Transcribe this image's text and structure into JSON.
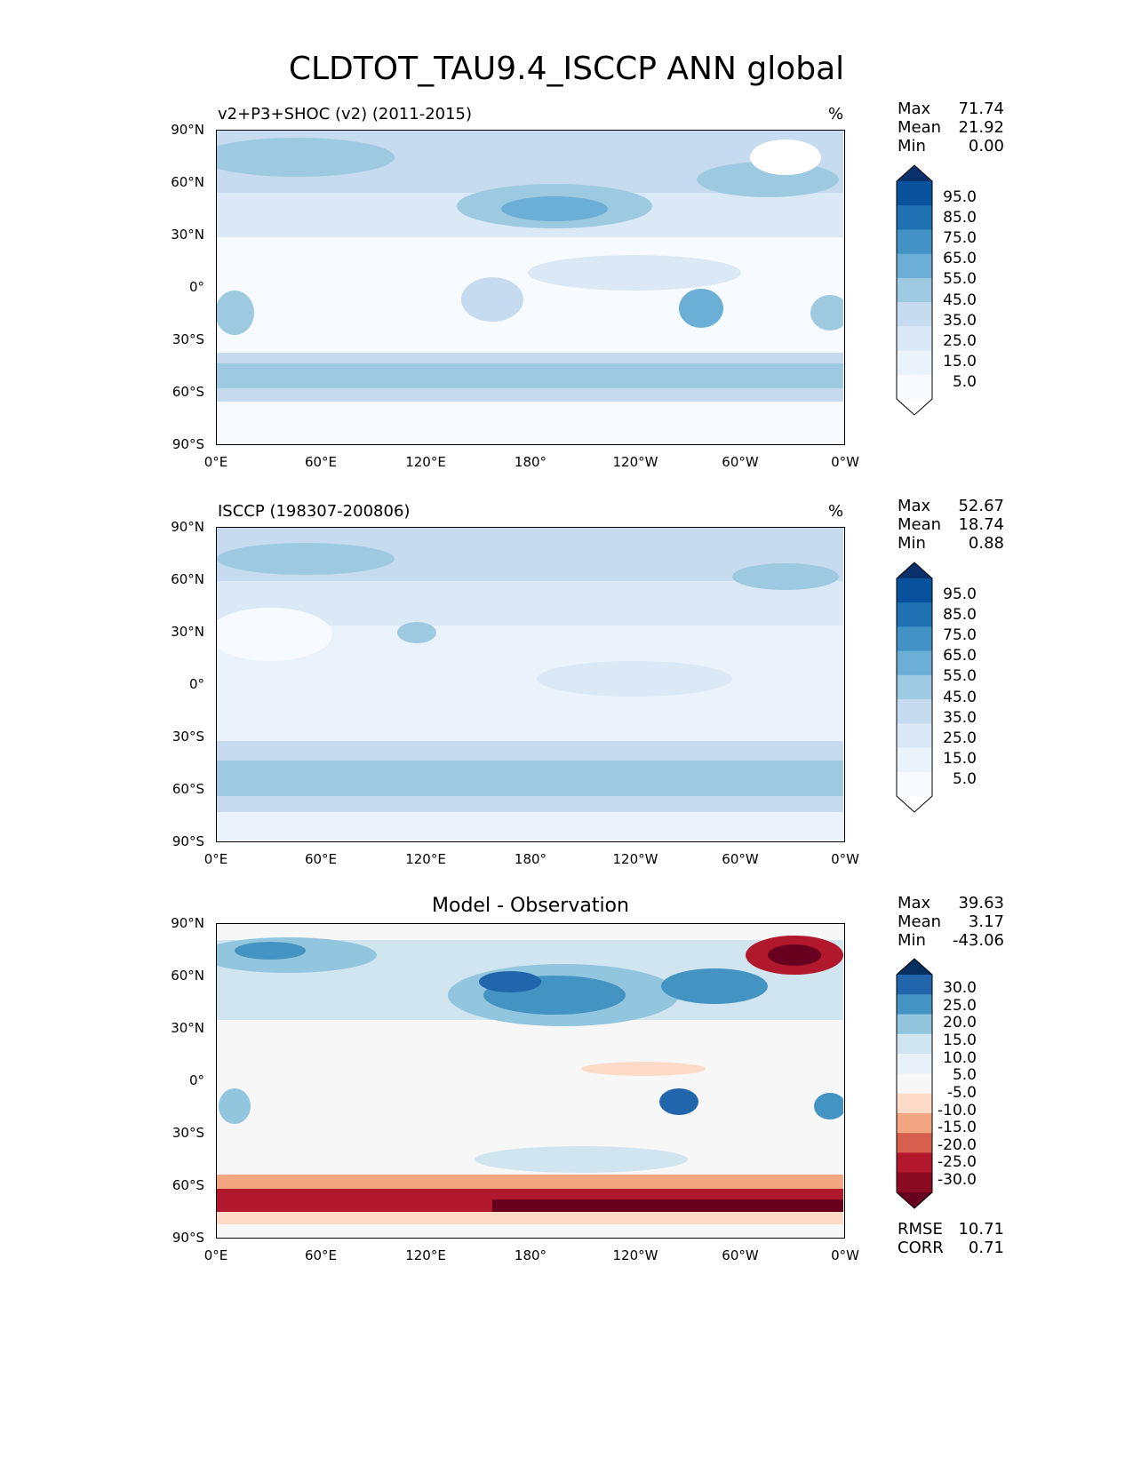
{
  "figure": {
    "title": "CLDTOT_TAU9.4_ISCCP ANN global"
  },
  "axes": {
    "lat_ticks": [
      "90°N",
      "60°N",
      "30°N",
      "0°",
      "30°S",
      "60°S",
      "90°S"
    ],
    "lon_ticks": [
      "0°E",
      "60°E",
      "120°E",
      "180°",
      "120°W",
      "60°W",
      "0°W"
    ]
  },
  "chart_data": [
    {
      "type": "heatmap",
      "title": "v2+P3+SHOC (v2) (2011-2015)",
      "units": "%",
      "stats": {
        "max_label": "Max",
        "max": "71.74",
        "mean_label": "Mean",
        "mean": "21.92",
        "min_label": "Min",
        "min": "0.00"
      },
      "colorbar_levels": [
        "95.0",
        "85.0",
        "75.0",
        "65.0",
        "55.0",
        "45.0",
        "35.0",
        "25.0",
        "15.0",
        "5.0"
      ],
      "colorbar_colors": [
        "#08306b",
        "#08519c",
        "#2171b5",
        "#4292c6",
        "#6baed6",
        "#9ecae1",
        "#c6dbef",
        "#dbe9f6",
        "#eaf2fb",
        "#f7fbff",
        "#ffffff"
      ],
      "xlim": [
        0,
        360
      ],
      "ylim": [
        -90,
        90
      ]
    },
    {
      "type": "heatmap",
      "title": "ISCCP (198307-200806)",
      "units": "%",
      "stats": {
        "max_label": "Max",
        "max": "52.67",
        "mean_label": "Mean",
        "mean": "18.74",
        "min_label": "Min",
        "min": "0.88"
      },
      "colorbar_levels": [
        "95.0",
        "85.0",
        "75.0",
        "65.0",
        "55.0",
        "45.0",
        "35.0",
        "25.0",
        "15.0",
        "5.0"
      ],
      "colorbar_colors": [
        "#08306b",
        "#08519c",
        "#2171b5",
        "#4292c6",
        "#6baed6",
        "#9ecae1",
        "#c6dbef",
        "#dbe9f6",
        "#eaf2fb",
        "#f7fbff",
        "#ffffff"
      ],
      "xlim": [
        0,
        360
      ],
      "ylim": [
        -90,
        90
      ]
    },
    {
      "type": "heatmap",
      "title": "Model - Observation",
      "units": "",
      "stats": {
        "max_label": "Max",
        "max": "39.63",
        "mean_label": "Mean",
        "mean": "3.17",
        "min_label": "Min",
        "min": "-43.06"
      },
      "colorbar_levels": [
        "30.0",
        "25.0",
        "20.0",
        "15.0",
        "10.0",
        "5.0",
        "-5.0",
        "-10.0",
        "-15.0",
        "-20.0",
        "-25.0",
        "-30.0"
      ],
      "colorbar_colors": [
        "#053061",
        "#2166ac",
        "#4393c3",
        "#92c5de",
        "#d1e5f0",
        "#e8f1f7",
        "#f7f7f7",
        "#fddbc7",
        "#f4a582",
        "#d6604d",
        "#b2182b",
        "#8b0c22",
        "#67001f"
      ],
      "xlim": [
        0,
        360
      ],
      "ylim": [
        -90,
        90
      ],
      "metrics": {
        "rmse_label": "RMSE",
        "rmse": "10.71",
        "corr_label": "CORR",
        "corr": "0.71"
      }
    }
  ]
}
